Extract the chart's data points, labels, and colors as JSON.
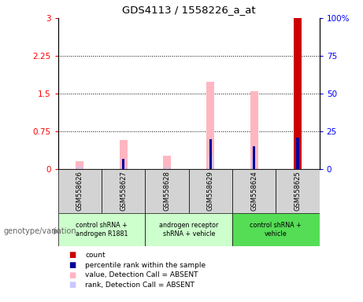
{
  "title": "GDS4113 / 1558226_a_at",
  "samples": [
    "GSM558626",
    "GSM558627",
    "GSM558628",
    "GSM558629",
    "GSM558624",
    "GSM558625"
  ],
  "value_absent": [
    0.15,
    0.58,
    0.27,
    1.73,
    1.55,
    3.0
  ],
  "rank_absent": [
    0.05,
    0.07,
    0.04,
    0.28,
    0.2,
    0.38
  ],
  "count": [
    0.0,
    0.0,
    0.0,
    0.0,
    0.0,
    3.0
  ],
  "percentile_rank": [
    0.0,
    7.0,
    0.0,
    20.0,
    15.0,
    21.0
  ],
  "ylim_left": [
    0,
    3
  ],
  "ylim_right": [
    0,
    100
  ],
  "yticks_left": [
    0,
    0.75,
    1.5,
    2.25,
    3
  ],
  "yticks_right": [
    0,
    25,
    50,
    75,
    100
  ],
  "color_value_absent": "#ffb6c1",
  "color_rank_absent": "#c8c8ff",
  "color_count": "#cc0000",
  "color_percentile": "#000099",
  "color_sample_bg": "#d3d3d3",
  "color_group1": "#ccffcc",
  "color_group2": "#66dd66",
  "genotype_label": "genotype/variation",
  "group_info": [
    {
      "start": 0,
      "end": 1,
      "label": "control shRNA +\nandrogen R1881",
      "color": "#ccffcc"
    },
    {
      "start": 2,
      "end": 3,
      "label": "androgen receptor\nshRNA + vehicle",
      "color": "#ccffcc"
    },
    {
      "start": 4,
      "end": 5,
      "label": "control shRNA +\nvehicle",
      "color": "#55dd55"
    }
  ],
  "legend_items": [
    {
      "color": "#cc0000",
      "label": "count"
    },
    {
      "color": "#000099",
      "label": "percentile rank within the sample"
    },
    {
      "color": "#ffb6c1",
      "label": "value, Detection Call = ABSENT"
    },
    {
      "color": "#c8c8ff",
      "label": "rank, Detection Call = ABSENT"
    }
  ]
}
